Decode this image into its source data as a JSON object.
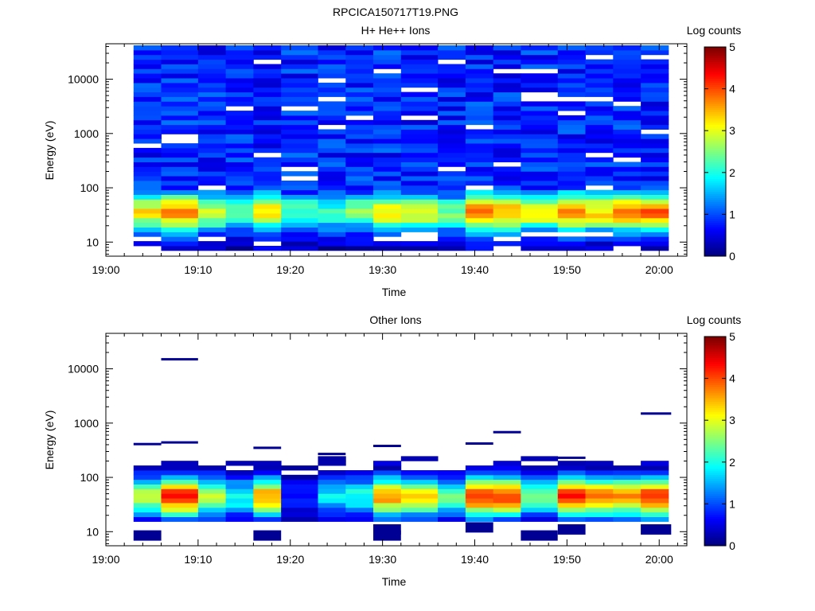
{
  "figure": {
    "title": "RPCICA150717T19.PNG"
  },
  "chart_data": [
    {
      "type": "heatmap",
      "title": "H+ He++ Ions",
      "xlabel": "Time",
      "ylabel": "Energy (eV)",
      "x_ticks": [
        "19:00",
        "19:10",
        "19:20",
        "19:30",
        "19:40",
        "19:50",
        "20:00"
      ],
      "y_ticks": [
        "10",
        "100",
        "1000",
        "10000"
      ],
      "y_scale": "log",
      "ylim": [
        5.5,
        45000
      ],
      "xlim": [
        "19:00",
        "20:03"
      ],
      "colorbar": {
        "label": "Log counts",
        "min": 0,
        "max": 5,
        "ticks": [
          "0",
          "1",
          "2",
          "3",
          "4",
          "5"
        ]
      },
      "time_bins": [
        "19:03",
        "19:06",
        "19:10",
        "19:13",
        "19:16",
        "19:19",
        "19:23",
        "19:26",
        "19:29",
        "19:32",
        "19:36",
        "19:39",
        "19:42",
        "19:45",
        "19:49",
        "19:52",
        "19:55",
        "19:58"
      ],
      "data_window": [
        "19:03",
        "20:01"
      ],
      "profile": {
        "energy_ev": [
          7,
          9,
          12,
          15,
          20,
          26,
          33,
          42,
          55,
          70,
          90
        ],
        "log_counts": [
          0.3,
          0.5,
          0.8,
          1.2,
          2.0,
          2.8,
          3.2,
          3.1,
          2.6,
          1.7,
          1.1
        ],
        "high_energy_range_ev": [
          90,
          40000
        ],
        "high_energy_log_counts": [
          0.4,
          1.2
        ]
      },
      "peak_by_bin": [
        3.2,
        3.8,
        3.0,
        2.4,
        3.3,
        2.3,
        2.2,
        2.5,
        3.2,
        3.0,
        2.4,
        3.8,
        3.7,
        3.2,
        3.8,
        3.4,
        3.8,
        3.9
      ]
    },
    {
      "type": "heatmap",
      "title": "Other Ions",
      "xlabel": "Time",
      "ylabel": "Energy (eV)",
      "x_ticks": [
        "19:00",
        "19:10",
        "19:20",
        "19:30",
        "19:40",
        "19:50",
        "20:00"
      ],
      "y_ticks": [
        "10",
        "100",
        "1000",
        "10000"
      ],
      "y_scale": "log",
      "ylim": [
        5.5,
        45000
      ],
      "xlim": [
        "19:00",
        "20:03"
      ],
      "colorbar": {
        "label": "Log counts",
        "min": 0,
        "max": 5,
        "ticks": [
          "0",
          "1",
          "2",
          "3",
          "4",
          "5"
        ]
      },
      "time_bins": [
        "19:03",
        "19:06",
        "19:10",
        "19:13",
        "19:16",
        "19:19",
        "19:23",
        "19:26",
        "19:29",
        "19:32",
        "19:36",
        "19:39",
        "19:42",
        "19:45",
        "19:49",
        "19:52",
        "19:55",
        "19:58"
      ],
      "data_window": [
        "19:03",
        "20:01"
      ],
      "profile": {
        "energy_ev": [
          16,
          20,
          26,
          33,
          42,
          55,
          70,
          90,
          115,
          150
        ],
        "log_counts": [
          0.8,
          1.5,
          2.4,
          3.2,
          3.6,
          3.4,
          2.6,
          1.8,
          0.9,
          0.3
        ]
      },
      "peak_by_bin": [
        2.8,
        4.3,
        2.9,
        2.0,
        3.6,
        0.7,
        1.8,
        2.0,
        3.6,
        3.2,
        2.3,
        4.1,
        4.2,
        2.5,
        4.2,
        3.8,
        3.7,
        4.3
      ],
      "isolated_counts": [
        {
          "time": "19:03",
          "energy_ev": 410
        },
        {
          "time": "19:06",
          "energy_ev": 15000
        },
        {
          "time": "19:06",
          "energy_ev": 440
        },
        {
          "time": "19:16",
          "energy_ev": 350
        },
        {
          "time": "19:23",
          "energy_ev": 270
        },
        {
          "time": "19:29",
          "energy_ev": 380
        },
        {
          "time": "19:39",
          "energy_ev": 420
        },
        {
          "time": "19:42",
          "energy_ev": 680
        },
        {
          "time": "19:49",
          "energy_ev": 230
        },
        {
          "time": "19:58",
          "energy_ev": 1500
        }
      ],
      "low_energy_counts": [
        {
          "time": "19:03",
          "energy_ev": 8.5
        },
        {
          "time": "19:16",
          "energy_ev": 8.5
        },
        {
          "time": "19:29",
          "energy_ev": 11
        },
        {
          "time": "19:29",
          "energy_ev": 8.5
        },
        {
          "time": "19:39",
          "energy_ev": 12
        },
        {
          "time": "19:45",
          "energy_ev": 8.5
        },
        {
          "time": "19:49",
          "energy_ev": 11
        },
        {
          "time": "19:58",
          "energy_ev": 11
        }
      ]
    }
  ]
}
